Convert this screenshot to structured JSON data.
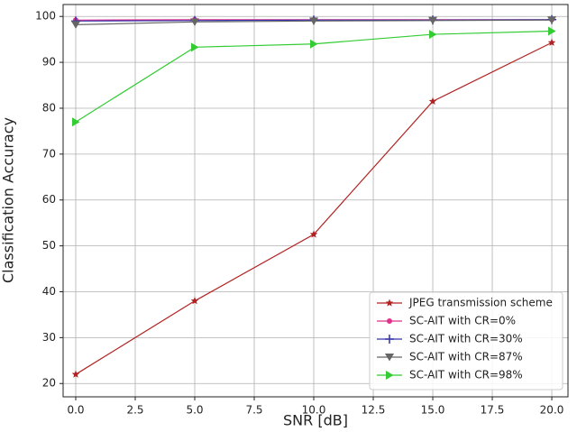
{
  "chart_data": {
    "type": "line",
    "x_label": "SNR [dB]",
    "y_label": "Classification Accuracy",
    "x": [
      0,
      5,
      10,
      15,
      20
    ],
    "series": [
      {
        "name": "JPEG transmission scheme",
        "color": "#b22222",
        "marker": "star",
        "values": [
          22,
          38,
          52.5,
          81.5,
          94.3
        ]
      },
      {
        "name": "SC-AIT with CR=0%",
        "color": "#e0308a",
        "marker": "circle",
        "values": [
          99.2,
          99.3,
          99.3,
          99.3,
          99.3
        ]
      },
      {
        "name": "SC-AIT with CR=30%",
        "color": "#3333aa",
        "marker": "plus",
        "values": [
          99,
          99.1,
          99.2,
          99.2,
          99.3
        ]
      },
      {
        "name": "SC-AIT with CR=87%",
        "color": "#666666",
        "marker": "triangle-down",
        "values": [
          98.2,
          98.8,
          99,
          99.1,
          99.2
        ]
      },
      {
        "name": "SC-AIT with CR=98%",
        "color": "#33cc33",
        "marker": "triangle-right",
        "values": [
          77,
          93.3,
          94,
          96.1,
          96.8
        ]
      }
    ],
    "xlim": [
      -0.53,
      20.68
    ],
    "ylim": [
      17.1,
      102.6
    ],
    "xticks": [
      {
        "value": 0,
        "label": "0.0"
      },
      {
        "value": 2.5,
        "label": "2.5"
      },
      {
        "value": 5,
        "label": "5.0"
      },
      {
        "value": 7.5,
        "label": "7.5"
      },
      {
        "value": 10,
        "label": "10.0"
      },
      {
        "value": 12.5,
        "label": "12.5"
      },
      {
        "value": 15,
        "label": "15.0"
      },
      {
        "value": 17.5,
        "label": "17.5"
      },
      {
        "value": 20,
        "label": "20.0"
      }
    ],
    "yticks": [
      20,
      30,
      40,
      50,
      60,
      70,
      80,
      90,
      100
    ],
    "grid": true,
    "legend": "lower right"
  }
}
